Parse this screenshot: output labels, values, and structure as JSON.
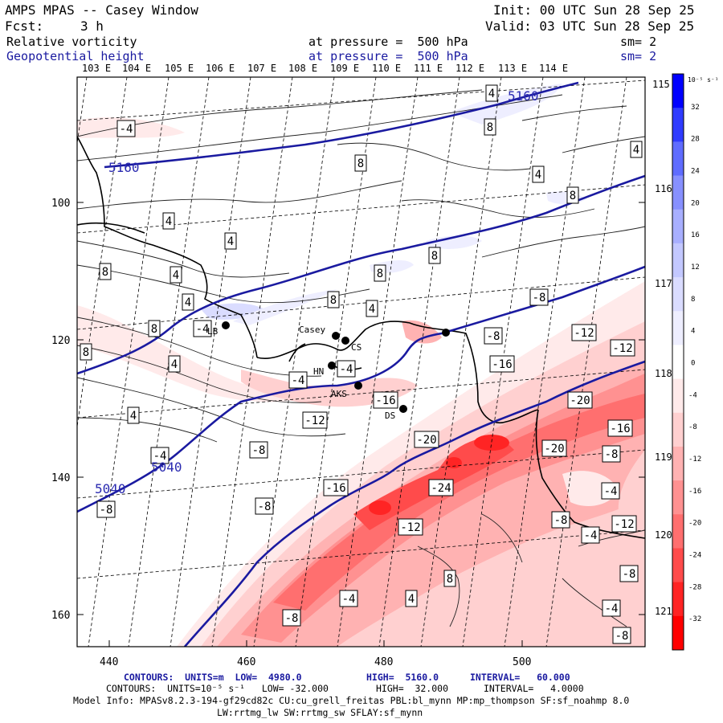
{
  "header": {
    "title": "AMPS MPAS -- Casey Window",
    "init": "Init: 00 UTC Sun 28 Sep 25",
    "forecast_label": "Fcst:",
    "forecast_value": "3 h",
    "valid": "Valid: 03 UTC Sun 28 Sep 25",
    "field1_name": "Relative vorticity",
    "field1_level": "at pressure =  500 hPa",
    "field1_smooth": "sm= 2",
    "field2_name": "Geopotential height",
    "field2_level": "at pressure =  500 hPa",
    "field2_smooth": "sm= 2"
  },
  "map": {
    "lon_labels_top": [
      "103 E",
      "104 E",
      "105 E",
      "106 E",
      "107 E",
      "108 E",
      "109 E",
      "110 E",
      "111 E",
      "112 E",
      "113 E",
      "114 E",
      "115 E"
    ],
    "lon_labels_right": [
      "116 E",
      "117 E",
      "118 E",
      "119 E",
      "120 E",
      "121 E"
    ],
    "y_ticks": [
      "100",
      "120",
      "140",
      "160"
    ],
    "x_ticks": [
      "440",
      "460",
      "480",
      "500"
    ],
    "stations": [
      "Casey",
      "CS",
      "HN",
      "DS",
      "LB",
      "AKS"
    ],
    "height_labels": [
      "5160",
      "5160",
      "5040",
      "5040"
    ],
    "vort_labels": [
      "-4",
      "-8",
      "-12",
      "-16",
      "-20",
      "-24",
      "4",
      "8"
    ]
  },
  "colorbar": {
    "unit": "10⁻⁵ s⁻¹",
    "labels": [
      "32",
      "28",
      "24",
      "20",
      "16",
      "12",
      "8",
      "4",
      "0",
      "-4",
      "-8",
      "-12",
      "-16",
      "-20",
      "-24",
      "-28",
      "-32"
    ],
    "colors": [
      "#0000ff",
      "#2f3bff",
      "#5f6cff",
      "#8790ff",
      "#a8afff",
      "#c3c8ff",
      "#dadcff",
      "#eeeeff",
      "#ffffff",
      "#ffeaea",
      "#ffd0d0",
      "#ffb2b2",
      "#ff9191",
      "#ff6f6f",
      "#ff4b4b",
      "#ff2424",
      "#ff0000"
    ]
  },
  "footer": {
    "line1_a": "CONTOURS:  UNITS=m  LOW=  4980.0",
    "line1_b": "HIGH=  5160.0",
    "line1_c": "INTERVAL=   60.000",
    "line2_a": "CONTOURS:  UNITS=10⁻⁵ s⁻¹   LOW= -32.000",
    "line2_b": "HIGH=  32.000",
    "line2_c": "INTERVAL=   4.0000",
    "line3": "Model Info: MPASv8.2.3-194-gf29cd82c CU:cu_grell_freitas PBL:bl_mynn MP:mp_thompson SF:sf_noahmp 8.0",
    "line4": "LW:rrtmg_lw SW:rrtmg_sw SFLAY:sf_mynn"
  }
}
